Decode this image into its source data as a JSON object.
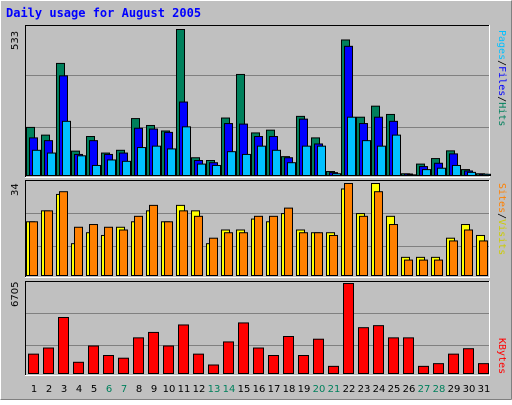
{
  "title": "Daily usage for August 2005",
  "colors": {
    "background": "#c0c0c0",
    "hits": "#00805c",
    "files": "#0000ff",
    "pages": "#00c0ff",
    "visits": "#ffff00",
    "sites": "#ff8000",
    "kbytes": "#ff0000",
    "weekday_label": "#000000",
    "weekend_label": "#00805c"
  },
  "legend": {
    "top": {
      "pages": "Pages",
      "sep1": "/",
      "files": "Files",
      "sep2": "/",
      "hits": "Hits"
    },
    "middle": {
      "sites": "Sites",
      "sep": "/",
      "visits": "Visits"
    },
    "bottom": {
      "kbytes": "KBytes"
    }
  },
  "chart_data": [
    {
      "type": "bar",
      "panel": "hits-files-pages",
      "ymax_label": "533",
      "ylim": [
        0,
        533
      ],
      "categories": [
        "1",
        "2",
        "3",
        "4",
        "5",
        "6",
        "7",
        "8",
        "9",
        "10",
        "11",
        "12",
        "13",
        "14",
        "15",
        "16",
        "17",
        "18",
        "19",
        "20",
        "21",
        "22",
        "23",
        "24",
        "25",
        "26",
        "27",
        "28",
        "29",
        "30",
        "31"
      ],
      "weekend_days": [
        "6",
        "7",
        "13",
        "14",
        "20",
        "21",
        "27",
        "28"
      ],
      "series": [
        {
          "name": "Hits",
          "values": [
            178,
            150,
            410,
            92,
            145,
            85,
            95,
            210,
            185,
            165,
            533,
            68,
            58,
            212,
            370,
            158,
            168,
            72,
            218,
            140,
            18,
            495,
            215,
            255,
            225,
            10,
            45,
            65,
            93,
            25,
            10
          ]
        },
        {
          "name": "Files",
          "values": [
            140,
            130,
            365,
            80,
            130,
            80,
            85,
            175,
            172,
            160,
            270,
            58,
            50,
            192,
            190,
            145,
            145,
            68,
            208,
            118,
            14,
            472,
            192,
            215,
            200,
            9,
            36,
            48,
            82,
            20,
            8
          ]
        },
        {
          "name": "Pages",
          "values": [
            95,
            85,
            200,
            75,
            40,
            60,
            55,
            105,
            110,
            100,
            180,
            45,
            40,
            90,
            80,
            110,
            95,
            50,
            110,
            110,
            10,
            215,
            130,
            110,
            150,
            6,
            25,
            30,
            40,
            15,
            8
          ]
        }
      ]
    },
    {
      "type": "bar",
      "panel": "visits-sites",
      "ymax_label": "34",
      "ylim": [
        0,
        34
      ],
      "categories": [
        "1",
        "2",
        "3",
        "4",
        "5",
        "6",
        "7",
        "8",
        "9",
        "10",
        "11",
        "12",
        "13",
        "14",
        "15",
        "16",
        "17",
        "18",
        "19",
        "20",
        "21",
        "22",
        "23",
        "24",
        "25",
        "26",
        "27",
        "28",
        "29",
        "30",
        "31"
      ],
      "series": [
        {
          "name": "Visits",
          "values": [
            20,
            24,
            30,
            12,
            16,
            15,
            18,
            20,
            24,
            20,
            26,
            24,
            12,
            17,
            17,
            21,
            20,
            23,
            17,
            16,
            16,
            32,
            23,
            34,
            22,
            7,
            7,
            7,
            14,
            19,
            15
          ]
        },
        {
          "name": "Sites",
          "values": [
            20,
            24,
            31,
            18,
            19,
            18,
            17,
            22,
            26,
            20,
            24,
            22,
            14,
            16,
            16,
            22,
            22,
            25,
            16,
            16,
            15,
            34,
            22,
            31,
            19,
            6,
            6,
            6,
            13,
            17,
            13
          ]
        }
      ]
    },
    {
      "type": "bar",
      "panel": "kbytes",
      "ymax_label": "6705",
      "ylim": [
        0,
        6705
      ],
      "categories": [
        "1",
        "2",
        "3",
        "4",
        "5",
        "6",
        "7",
        "8",
        "9",
        "10",
        "11",
        "12",
        "13",
        "14",
        "15",
        "16",
        "17",
        "18",
        "19",
        "20",
        "21",
        "22",
        "23",
        "24",
        "25",
        "26",
        "27",
        "28",
        "29",
        "30",
        "31"
      ],
      "series": [
        {
          "name": "KBytes",
          "values": [
            1500,
            1950,
            4200,
            900,
            2100,
            1400,
            1200,
            2700,
            3100,
            2100,
            3650,
            1500,
            700,
            2400,
            3800,
            1950,
            1400,
            2800,
            1400,
            2600,
            600,
            6705,
            3450,
            3600,
            2700,
            2700,
            600,
            800,
            1500,
            1900,
            800
          ]
        }
      ]
    }
  ]
}
